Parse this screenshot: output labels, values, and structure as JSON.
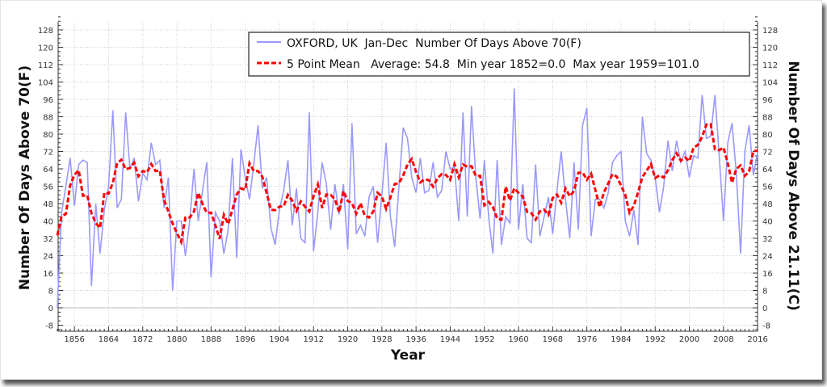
{
  "chart_data": {
    "type": "line",
    "title": "",
    "xlabel": "Year",
    "ylabel": "Number Of Days Above 70(F)",
    "ylabel_right": "Number Of Days Above 21.11(C)",
    "xlim": [
      1852,
      2016
    ],
    "ylim": [
      -8,
      128
    ],
    "grid": true,
    "x_ticks": [
      1856,
      1864,
      1872,
      1880,
      1888,
      1896,
      1904,
      1912,
      1920,
      1928,
      1936,
      1944,
      1952,
      1960,
      1968,
      1976,
      1984,
      1992,
      2000,
      2008,
      2016
    ],
    "y_ticks": [
      -8,
      0,
      8,
      16,
      24,
      32,
      40,
      48,
      56,
      64,
      72,
      80,
      88,
      96,
      104,
      112,
      120,
      128
    ],
    "legend_position": "top-right",
    "start_year": 1852,
    "series": [
      {
        "name": "OXFORD, UK  Jan-Dec  Number Of Days Above 70(F)",
        "color": "#9999ff",
        "values": [
          0,
          44,
          56,
          69,
          47,
          66,
          68,
          67,
          10,
          48,
          25,
          45,
          56,
          91,
          46,
          50,
          90,
          64,
          69,
          49,
          62,
          59,
          76,
          66,
          68,
          46,
          60,
          8,
          40,
          40,
          24,
          40,
          64,
          40,
          54,
          67,
          14,
          44,
          40,
          25,
          36,
          69,
          23,
          73,
          60,
          50,
          66,
          84,
          55,
          60,
          37,
          29,
          45,
          54,
          68,
          38,
          55,
          32,
          30,
          90,
          26,
          44,
          67,
          57,
          36,
          57,
          43,
          57,
          27,
          85,
          34,
          38,
          33,
          51,
          56,
          30,
          52,
          76,
          42,
          28,
          56,
          83,
          78,
          60,
          53,
          69,
          53,
          54,
          67,
          51,
          54,
          72,
          64,
          65,
          40,
          90,
          42,
          93,
          60,
          41,
          68,
          42,
          25,
          68,
          29,
          42,
          39,
          101,
          36,
          57,
          32,
          30,
          66,
          33,
          42,
          51,
          34,
          54,
          72,
          50,
          32,
          67,
          36,
          84,
          92,
          33,
          50,
          50,
          46,
          53,
          67,
          70,
          72,
          40,
          33,
          45,
          29,
          88,
          71,
          68,
          60,
          44,
          56,
          77,
          63,
          77,
          67,
          72,
          60,
          70,
          69,
          98,
          78,
          79,
          98,
          70,
          40,
          76,
          85,
          62,
          25,
          72,
          84,
          61,
          72
        ]
      },
      {
        "name": "5 Point Mean   Average: 54.8  Min year 1852=0.0  Max year 1959=101.0",
        "color": "#ff0000",
        "window": 5
      }
    ]
  }
}
